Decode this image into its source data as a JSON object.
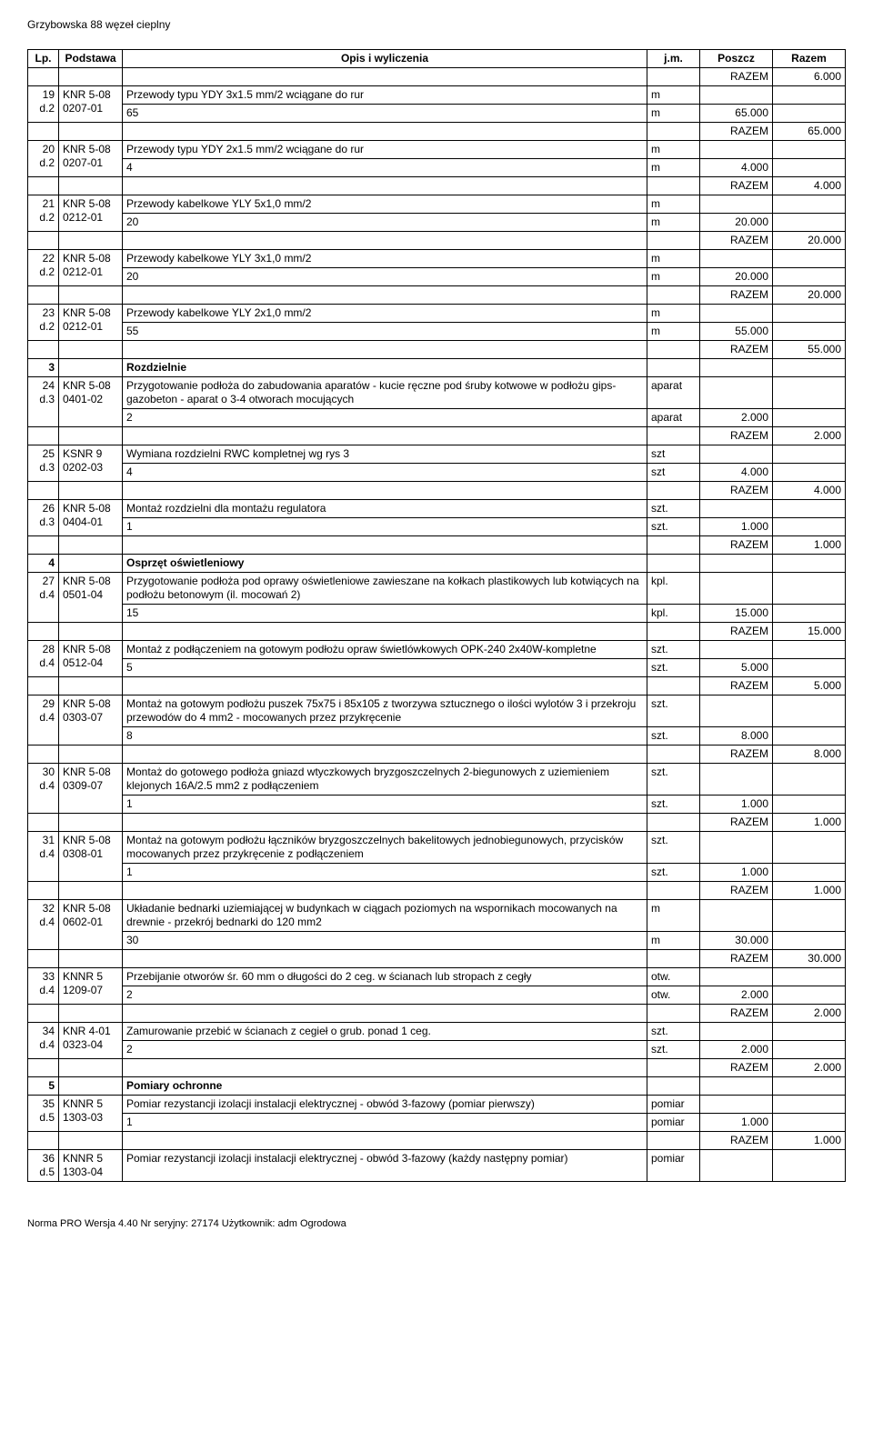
{
  "doc_title": "Grzybowska 88 węzeł cieplny",
  "header": {
    "lp": "Lp.",
    "podstawa": "Podstawa",
    "opis": "Opis i wyliczenia",
    "jm": "j.m.",
    "poszcz": "Poszcz",
    "razem": "Razem"
  },
  "razem_label": "RAZEM",
  "rows": [
    {
      "type": "razem",
      "value": "6.000"
    },
    {
      "type": "item",
      "lp": "19",
      "d": "d.2",
      "pod": "KNR 5-08 0207-01",
      "desc": "Przewody typu YDY 3x1.5 mm/2 wciągane do rur",
      "jm": "m",
      "calc": "65",
      "calc_jm": "m",
      "poszcz": "65.000"
    },
    {
      "type": "razem",
      "value": "65.000"
    },
    {
      "type": "item",
      "lp": "20",
      "d": "d.2",
      "pod": "KNR 5-08 0207-01",
      "desc": "Przewody typu YDY 2x1.5 mm/2 wciągane do rur",
      "jm": "m",
      "calc": "4",
      "calc_jm": "m",
      "poszcz": "4.000"
    },
    {
      "type": "razem",
      "value": "4.000"
    },
    {
      "type": "item",
      "lp": "21",
      "d": "d.2",
      "pod": "KNR 5-08 0212-01",
      "desc": "Przewody kabelkowe YLY 5x1,0 mm/2",
      "jm": "m",
      "calc": "20",
      "calc_jm": "m",
      "poszcz": "20.000"
    },
    {
      "type": "razem",
      "value": "20.000"
    },
    {
      "type": "item",
      "lp": "22",
      "d": "d.2",
      "pod": "KNR 5-08 0212-01",
      "desc": "Przewody kabelkowe YLY 3x1,0 mm/2",
      "jm": "m",
      "calc": "20",
      "calc_jm": "m",
      "poszcz": "20.000"
    },
    {
      "type": "razem",
      "value": "20.000"
    },
    {
      "type": "item",
      "lp": "23",
      "d": "d.2",
      "pod": "KNR 5-08 0212-01",
      "desc": "Przewody kabelkowe YLY 2x1,0 mm/2",
      "jm": "m",
      "calc": "55",
      "calc_jm": "m",
      "poszcz": "55.000"
    },
    {
      "type": "razem",
      "value": "55.000"
    },
    {
      "type": "section",
      "lp": "3",
      "title": "Rozdzielnie"
    },
    {
      "type": "item",
      "lp": "24",
      "d": "d.3",
      "pod": "KNR 5-08 0401-02",
      "desc": "Przygotowanie podłoża do zabudowania aparatów - kucie ręczne pod śruby kotwowe w podłożu gips-gazobeton - aparat o 3-4 otworach mocujących",
      "jm": "aparat",
      "calc": "2",
      "calc_jm": "aparat",
      "poszcz": "2.000"
    },
    {
      "type": "razem",
      "value": "2.000"
    },
    {
      "type": "item",
      "lp": "25",
      "d": "d.3",
      "pod": "KSNR 9 0202-03",
      "desc": "Wymiana rozdzielni RWC  kompletnej wg rys  3",
      "jm": "szt",
      "calc": "4",
      "calc_jm": "szt",
      "poszcz": "4.000"
    },
    {
      "type": "razem",
      "value": "4.000"
    },
    {
      "type": "item",
      "lp": "26",
      "d": "d.3",
      "pod": "KNR 5-08 0404-01",
      "desc": "Montaż rozdzielni dla montażu regulatora",
      "jm": "szt.",
      "calc": "1",
      "calc_jm": "szt.",
      "poszcz": "1.000"
    },
    {
      "type": "razem",
      "value": "1.000"
    },
    {
      "type": "section",
      "lp": "4",
      "title": "Osprzęt oświetleniowy"
    },
    {
      "type": "item",
      "lp": "27",
      "d": "d.4",
      "pod": "KNR 5-08 0501-04",
      "desc": "Przygotowanie podłoża pod oprawy oświetleniowe zawieszane na kołkach plastikowych lub kotwiących na podłożu betonowym (il. mocowań 2)",
      "jm": "kpl.",
      "calc": "15",
      "calc_jm": "kpl.",
      "poszcz": "15.000"
    },
    {
      "type": "razem",
      "value": "15.000"
    },
    {
      "type": "item",
      "lp": "28",
      "d": "d.4",
      "pod": "KNR 5-08 0512-04",
      "desc": "Montaż z podłączeniem na gotowym podłożu opraw świetlówkowych OPK-240 2x40W-kompletne",
      "jm": "szt.",
      "calc": "5",
      "calc_jm": "szt.",
      "poszcz": "5.000"
    },
    {
      "type": "razem",
      "value": "5.000"
    },
    {
      "type": "item",
      "lp": "29",
      "d": "d.4",
      "pod": "KNR 5-08 0303-07",
      "desc": "Montaż na gotowym podłożu puszek 75x75 i 85x105 z tworzywa sztucznego o ilości wylotów 3 i przekroju przewodów do 4 mm2 - mocowanych przez przykręcenie",
      "jm": "szt.",
      "calc": "8",
      "calc_jm": "szt.",
      "poszcz": "8.000"
    },
    {
      "type": "razem",
      "value": "8.000"
    },
    {
      "type": "item",
      "lp": "30",
      "d": "d.4",
      "pod": "KNR 5-08 0309-07",
      "desc": "Montaż do gotowego podłoża gniazd wtyczkowych bryzgoszczelnych 2-biegunowych z uziemieniem klejonych 16A/2.5 mm2 z podłączeniem",
      "jm": "szt.",
      "calc": "1",
      "calc_jm": "szt.",
      "poszcz": "1.000"
    },
    {
      "type": "razem",
      "value": "1.000"
    },
    {
      "type": "item",
      "lp": "31",
      "d": "d.4",
      "pod": "KNR 5-08 0308-01",
      "desc": "Montaż na gotowym podłożu łączników bryzgoszczelnych bakelitowych jednobiegunowych, przycisków mocowanych przez przykręcenie z podłączeniem",
      "jm": "szt.",
      "calc": "1",
      "calc_jm": "szt.",
      "poszcz": "1.000"
    },
    {
      "type": "razem",
      "value": "1.000"
    },
    {
      "type": "item",
      "lp": "32",
      "d": "d.4",
      "pod": "KNR 5-08 0602-01",
      "desc": "Układanie bednarki uziemiającej w budynkach w ciągach poziomych na wspornikach mocowanych na drewnie - przekrój bednarki do 120 mm2",
      "jm": "m",
      "calc": "30",
      "calc_jm": "m",
      "poszcz": "30.000"
    },
    {
      "type": "razem",
      "value": "30.000"
    },
    {
      "type": "item",
      "lp": "33",
      "d": "d.4",
      "pod": "KNNR 5 1209-07",
      "desc": "Przebijanie otworów śr. 60 mm o długości do 2 ceg. w ścianach lub stropach z cegły",
      "jm": "otw.",
      "calc": "2",
      "calc_jm": "otw.",
      "poszcz": "2.000"
    },
    {
      "type": "razem",
      "value": "2.000"
    },
    {
      "type": "item",
      "lp": "34",
      "d": "d.4",
      "pod": "KNR 4-01 0323-04",
      "desc": "Zamurowanie przebić w ścianach z cegieł o grub. ponad 1 ceg.",
      "jm": "szt.",
      "calc": "2",
      "calc_jm": "szt.",
      "poszcz": "2.000"
    },
    {
      "type": "razem",
      "value": "2.000"
    },
    {
      "type": "section",
      "lp": "5",
      "title": "Pomiary ochronne"
    },
    {
      "type": "item",
      "lp": "35",
      "d": "d.5",
      "pod": "KNNR 5 1303-03",
      "desc": "Pomiar rezystancji izolacji instalacji elektrycznej - obwód 3-fazowy (pomiar pierwszy)",
      "jm": "pomiar",
      "calc": "1",
      "calc_jm": "pomiar",
      "poszcz": "1.000"
    },
    {
      "type": "razem",
      "value": "1.000"
    },
    {
      "type": "item_open",
      "lp": "36",
      "d": "d.5",
      "pod": "KNNR 5 1303-04",
      "desc": "Pomiar rezystancji izolacji instalacji elektrycznej - obwód 3-fazowy (każdy następny pomiar)",
      "jm": "pomiar"
    }
  ],
  "footer": "Norma PRO Wersja 4.40 Nr seryjny: 27174 Użytkownik: adm Ogrodowa"
}
